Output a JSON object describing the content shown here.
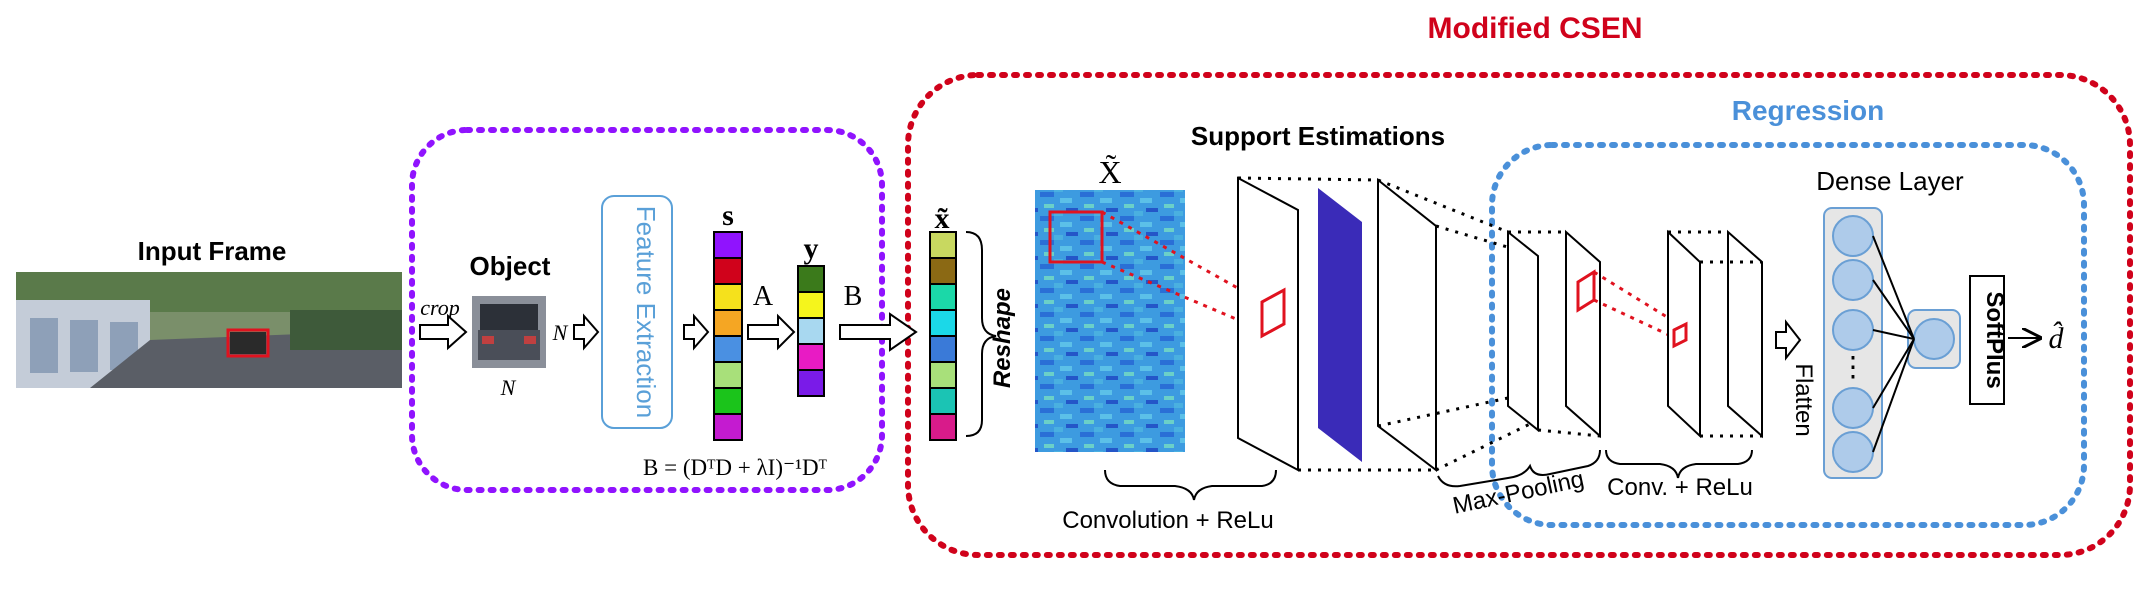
{
  "colors": {
    "csen_red": "#d0021b",
    "regression_blue": "#4a90d9",
    "object_purple": "#9013fe",
    "feature_blue": "#5aa0d8",
    "neuron_fill": "#aecbea",
    "neuron_stroke": "#6a9fd4",
    "dense_bg": "#e6e6e6"
  },
  "labels": {
    "modified_csen": "Modified CSEN",
    "regression": "Regression",
    "input_frame": "Input Frame",
    "object": "Object",
    "crop": "crop",
    "n_width": "N",
    "n_height": "N",
    "feature_extraction": "Feature Extraction",
    "s": "s",
    "y": "y",
    "A": "A",
    "B": "B",
    "x_tilde": "x̃",
    "X_tilde": "X̃",
    "reshape": "Reshape",
    "support_estimations": "Support Estimations",
    "convolution_relu": "Convolution + ReLu",
    "max_pooling": "Max-Pooling",
    "conv_relu": "Conv. + ReLu",
    "flatten": "Flatten",
    "dense_layer": "Dense Layer",
    "softplus": "SoftPlus",
    "d_hat": "d̂",
    "dots": "⋮",
    "formula": "B = (DᵀD + λI)⁻¹Dᵀ"
  },
  "vectors": {
    "s_colors": [
      "#9013fe",
      "#d0021b",
      "#f5e11c",
      "#f5a623",
      "#4a90e2",
      "#a8e07a",
      "#1bc41b",
      "#c41bd0"
    ],
    "y_colors": [
      "#3b7a1b",
      "#f5f51c",
      "#a8d8f0",
      "#e81bc4",
      "#7a1be8"
    ],
    "x_colors": [
      "#c8d860",
      "#8b6914",
      "#1bd8a8",
      "#1bd8e8",
      "#3a7ad8",
      "#a8e07a",
      "#1bc4b4",
      "#d81b8a"
    ]
  }
}
